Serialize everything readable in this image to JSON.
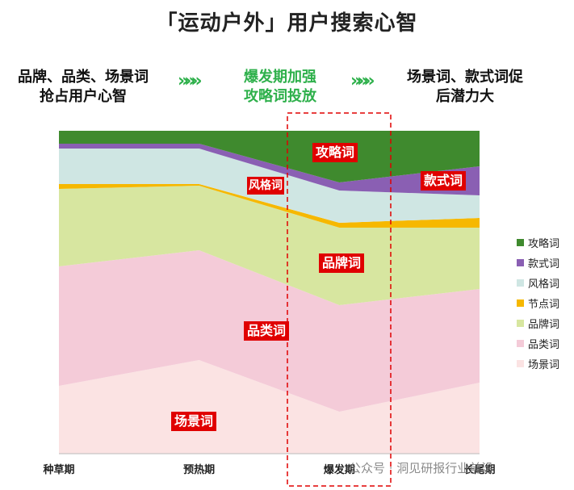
{
  "title": "「运动户外」用户搜索心智",
  "header": {
    "stage1": [
      "品牌、品类、场景词",
      "抢占用户心智"
    ],
    "stage2": [
      "爆发期加强",
      "攻略词投放"
    ],
    "stage3": [
      "场景词、款式词促",
      "后潜力大"
    ],
    "arrow": "»»»"
  },
  "annotations": {
    "gonglue": "攻略词",
    "fengge": "风格词",
    "kuanshi": "款式词",
    "pinpai": "品牌词",
    "pinlei": "品类词",
    "changjing": "场景词"
  },
  "watermark": "公众号 · 洞见研报行业前沿",
  "chart_data": {
    "type": "area",
    "stacked": true,
    "normalized": true,
    "x": [
      "种草期",
      "预热期",
      "爆发期",
      "长尾期"
    ],
    "series": [
      {
        "name": "场景词",
        "color": "#fbe3e3",
        "values": [
          21,
          29,
          13,
          22
        ]
      },
      {
        "name": "品类词",
        "color": "#f4cbd8",
        "values": [
          37,
          34,
          33,
          29
        ]
      },
      {
        "name": "品牌词",
        "color": "#d7e6a0",
        "values": [
          24,
          20,
          24,
          19
        ]
      },
      {
        "name": "节点词",
        "color": "#f6b800",
        "values": [
          1.5,
          0.5,
          1.5,
          3
        ]
      },
      {
        "name": "风格词",
        "color": "#cfe6e3",
        "values": [
          11,
          11,
          10,
          7
        ]
      },
      {
        "name": "款式词",
        "color": "#8a5fb3",
        "values": [
          1.5,
          1.5,
          2.5,
          9
        ]
      },
      {
        "name": "攻略词",
        "color": "#3f8a2e",
        "values": [
          4,
          4,
          16,
          11
        ]
      }
    ],
    "legend_position": "right",
    "highlight_category": "爆发期",
    "ylim": [
      0,
      100
    ]
  }
}
